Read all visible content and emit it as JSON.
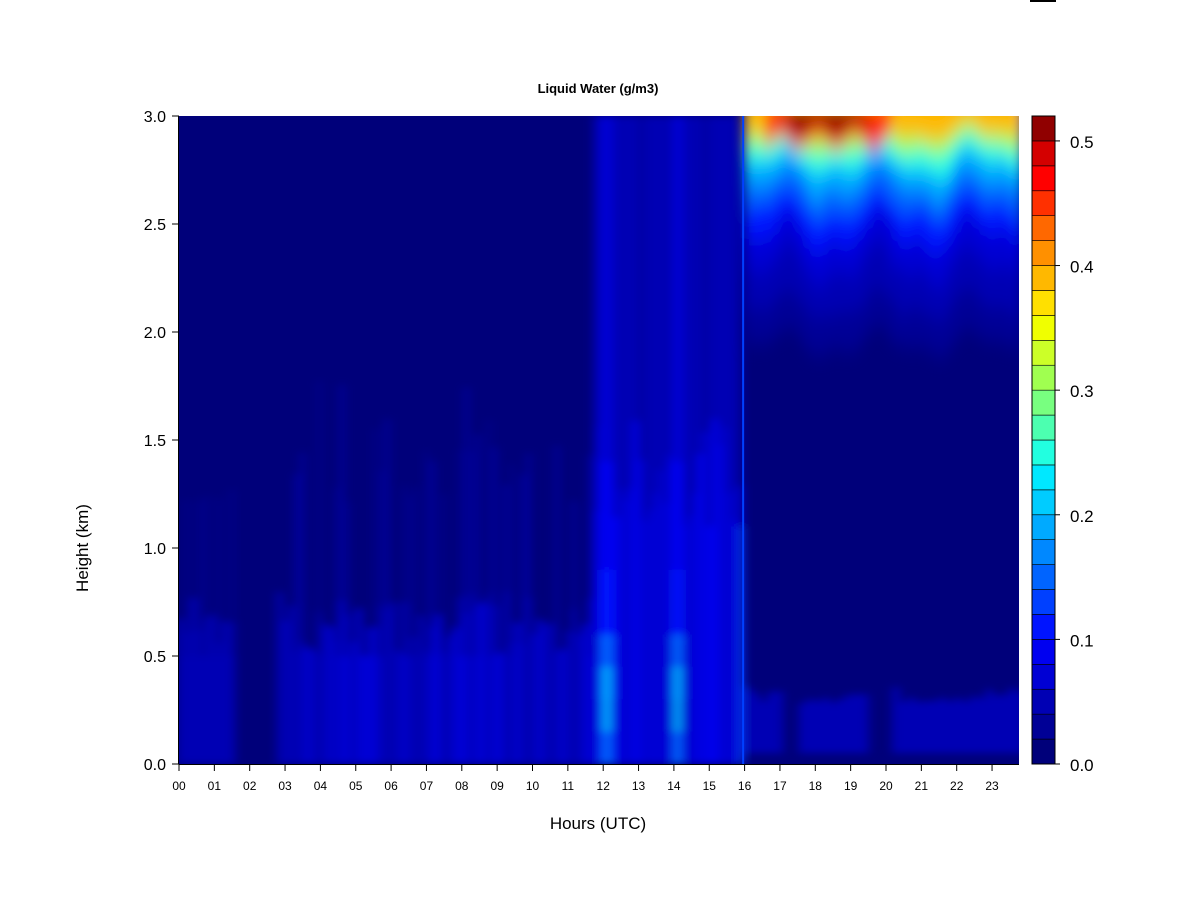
{
  "chart_data": {
    "type": "heatmap",
    "title": "Liquid Water (g/m3)",
    "xlabel": "Hours (UTC)",
    "ylabel": "Height (km)",
    "xlim": [
      0,
      23.85
    ],
    "ylim": [
      0.0,
      3.0
    ],
    "x_ticks": [
      "00",
      "01",
      "02",
      "03",
      "04",
      "05",
      "06",
      "07",
      "08",
      "09",
      "10",
      "11",
      "12",
      "13",
      "14",
      "15",
      "16",
      "17",
      "18",
      "19",
      "20",
      "21",
      "22",
      "23"
    ],
    "y_ticks": [
      "0.0",
      "0.5",
      "1.0",
      "1.5",
      "2.0",
      "2.5",
      "3.0"
    ],
    "colorbar": {
      "min": 0.0,
      "max": 0.52,
      "step": 0.02,
      "tick_values": [
        0.0,
        0.1,
        0.2,
        0.3,
        0.4,
        0.5
      ],
      "tick_labels": [
        "0.0",
        "0.1",
        "0.2",
        "0.3",
        "0.4",
        "0.5"
      ],
      "colors": [
        "#00007a",
        "#000096",
        "#0000b4",
        "#0000d4",
        "#0000f0",
        "#0014ff",
        "#0040ff",
        "#0064ff",
        "#0088ff",
        "#00aaff",
        "#00ccff",
        "#00e8ff",
        "#22ffe0",
        "#4cffb0",
        "#78ff80",
        "#a0ff50",
        "#ccff28",
        "#f0ff00",
        "#ffe000",
        "#ffb800",
        "#ff9000",
        "#ff6800",
        "#ff3000",
        "#ff0000",
        "#d40000",
        "#900000"
      ]
    },
    "features": [
      {
        "hours": [
          0.0,
          1.5
        ],
        "height_km": [
          0.0,
          1.4
        ],
        "max_g_m3": 0.06
      },
      {
        "hours": [
          2.8,
          7.0
        ],
        "height_km": [
          0.0,
          1.8
        ],
        "max_g_m3": 0.08
      },
      {
        "hours": [
          7.0,
          11.8
        ],
        "height_km": [
          0.0,
          1.6
        ],
        "max_g_m3": 0.07
      },
      {
        "hours": [
          11.9,
          12.3
        ],
        "height_km": [
          0.0,
          3.0
        ],
        "max_g_m3": 0.2
      },
      {
        "hours": [
          13.9,
          14.3
        ],
        "height_km": [
          0.0,
          3.0
        ],
        "max_g_m3": 0.18
      },
      {
        "hours": [
          16.0,
          23.85
        ],
        "height_km": [
          1.9,
          3.0
        ],
        "max_g_m3": 0.52
      },
      {
        "hours": [
          17.5,
          19.5
        ],
        "height_km": [
          2.8,
          3.0
        ],
        "max_g_m3": 0.52
      },
      {
        "hours": [
          16.0,
          23.85
        ],
        "height_km": [
          0.0,
          0.4
        ],
        "max_g_m3": 0.05
      }
    ]
  }
}
